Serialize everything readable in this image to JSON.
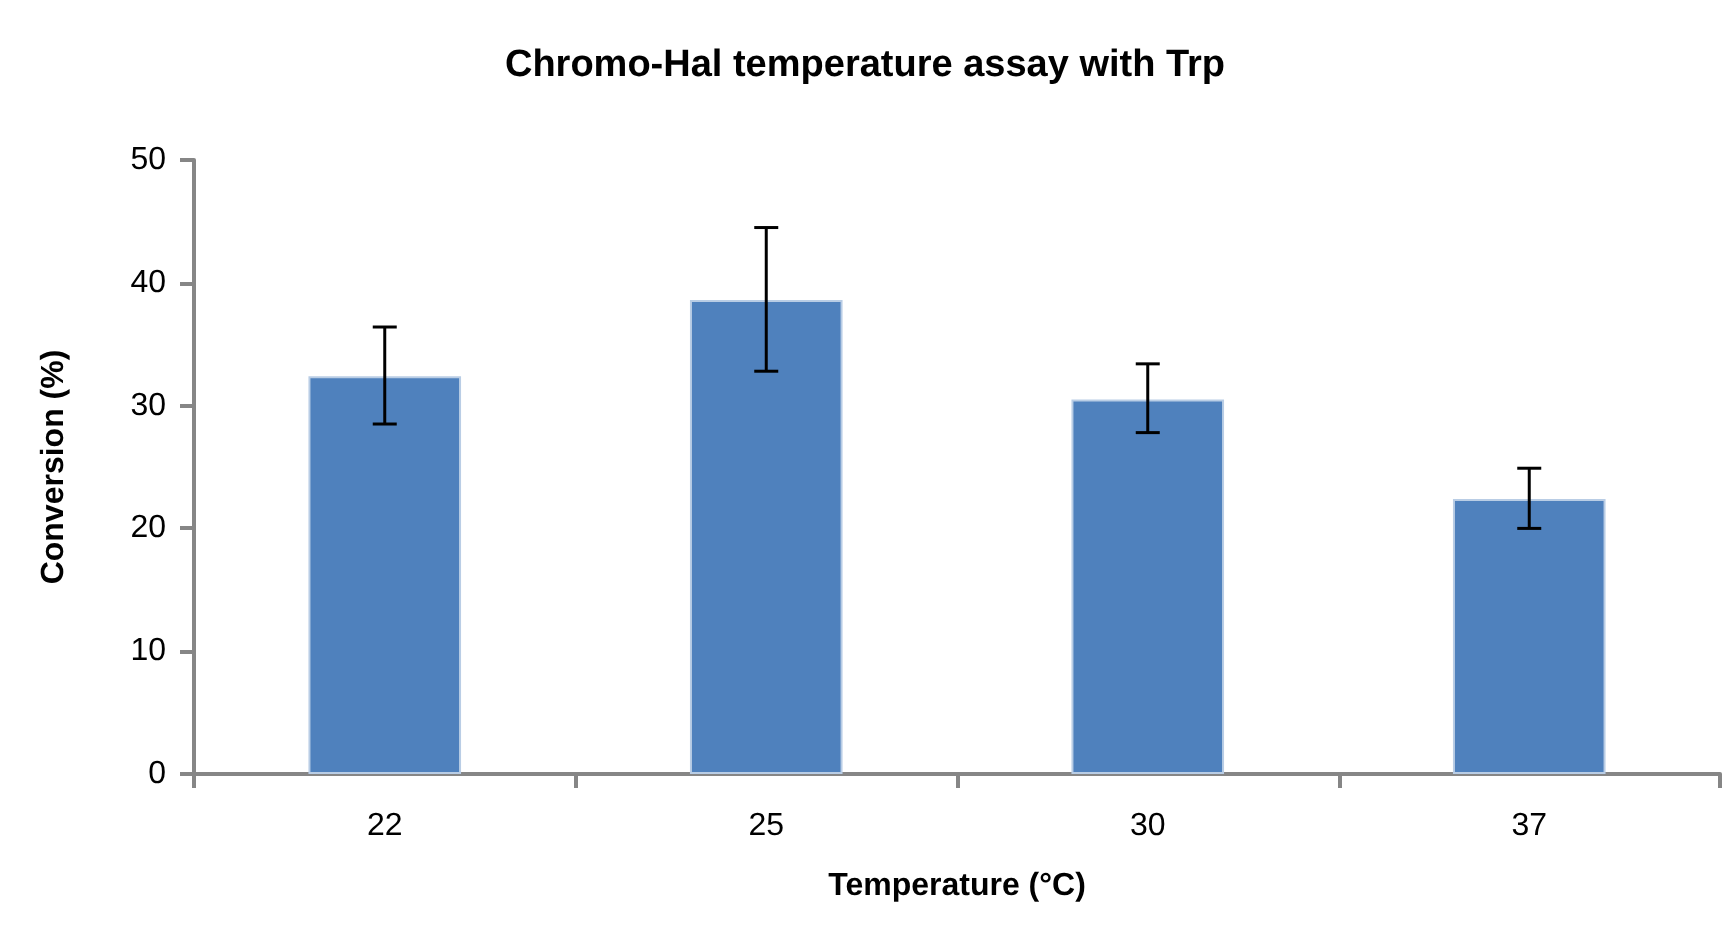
{
  "chart_data": {
    "type": "bar",
    "title": "Chromo-Hal temperature assay with Trp",
    "xlabel": "Temperature (°C)",
    "ylabel": "Conversion (%)",
    "categories": [
      "22",
      "25",
      "30",
      "37"
    ],
    "values": [
      32.4,
      38.6,
      30.5,
      22.4
    ],
    "errors": [
      [
        28.5,
        36.4
      ],
      [
        32.8,
        44.5
      ],
      [
        27.8,
        33.4
      ],
      [
        20.0,
        24.9
      ]
    ],
    "color": "#4f81bd",
    "ylim": [
      0,
      50
    ],
    "yticks": [
      0,
      10,
      20,
      30,
      40,
      50
    ],
    "grid": false
  }
}
